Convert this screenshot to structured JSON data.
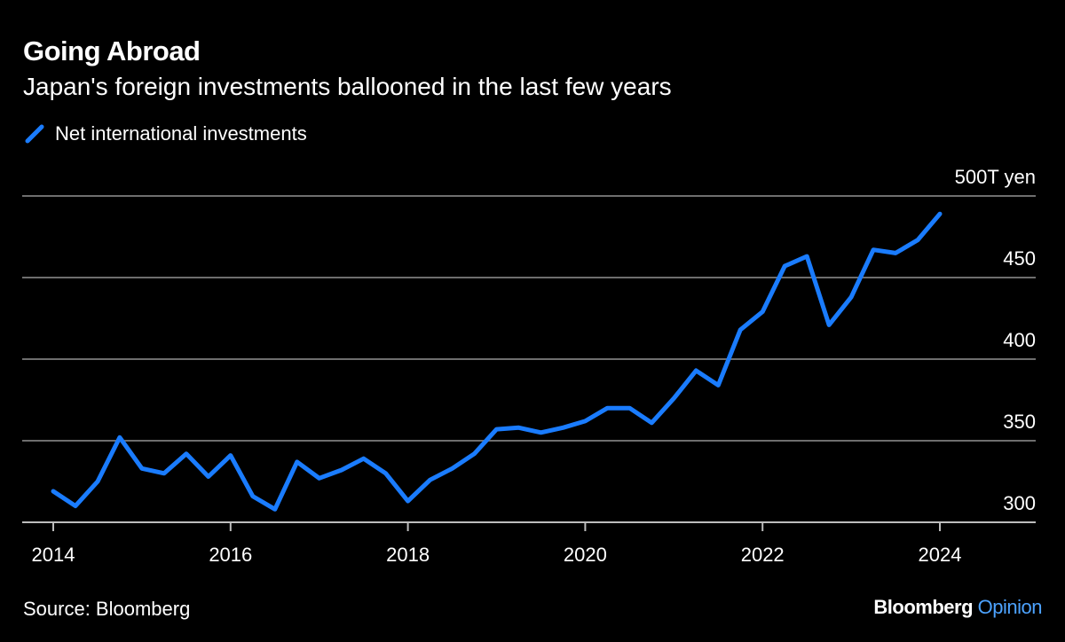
{
  "header": {
    "title": "Going Abroad",
    "subtitle": "Japan's foreign investments ballooned in the last few years"
  },
  "footer": {
    "source": "Source: Bloomberg",
    "brand_main": "Bloomberg",
    "brand_sub": "Opinion"
  },
  "colors": {
    "background": "#000000",
    "line": "#1a7cff",
    "grid": "#6e6e6e",
    "brand_accent": "#4da3ff"
  },
  "chart_data": {
    "type": "line",
    "title": "Going Abroad",
    "subtitle": "Japan's foreign investments ballooned in the last few years",
    "unit_label": "500T yen",
    "ylim": [
      300,
      500
    ],
    "yticks": [
      300,
      350,
      400,
      450,
      500
    ],
    "ytick_labels": [
      "300",
      "350",
      "400",
      "450",
      "500T yen"
    ],
    "xticks": [
      2014,
      2016,
      2018,
      2020,
      2022,
      2024
    ],
    "xtick_labels": [
      "2014",
      "2016",
      "2018",
      "2020",
      "2022",
      "2024"
    ],
    "grid": true,
    "legend": "top-left",
    "series": [
      {
        "name": "Net international investments",
        "color": "#1a7cff",
        "x": [
          2014.0,
          2014.25,
          2014.5,
          2014.75,
          2015.0,
          2015.25,
          2015.5,
          2015.75,
          2016.0,
          2016.25,
          2016.5,
          2016.75,
          2017.0,
          2017.25,
          2017.5,
          2017.75,
          2018.0,
          2018.25,
          2018.5,
          2018.75,
          2019.0,
          2019.25,
          2019.5,
          2019.75,
          2020.0,
          2020.25,
          2020.5,
          2020.75,
          2021.0,
          2021.25,
          2021.5,
          2021.75,
          2022.0,
          2022.25,
          2022.5,
          2022.75,
          2023.0,
          2023.25,
          2023.5,
          2023.75,
          2024.0
        ],
        "values": [
          319,
          310,
          325,
          352,
          333,
          330,
          342,
          328,
          341,
          316,
          308,
          337,
          327,
          332,
          339,
          330,
          313,
          326,
          333,
          342,
          357,
          358,
          355,
          358,
          362,
          370,
          370,
          361,
          376,
          393,
          384,
          418,
          429,
          457,
          463,
          421,
          438,
          467,
          465,
          473,
          489
        ]
      }
    ]
  }
}
